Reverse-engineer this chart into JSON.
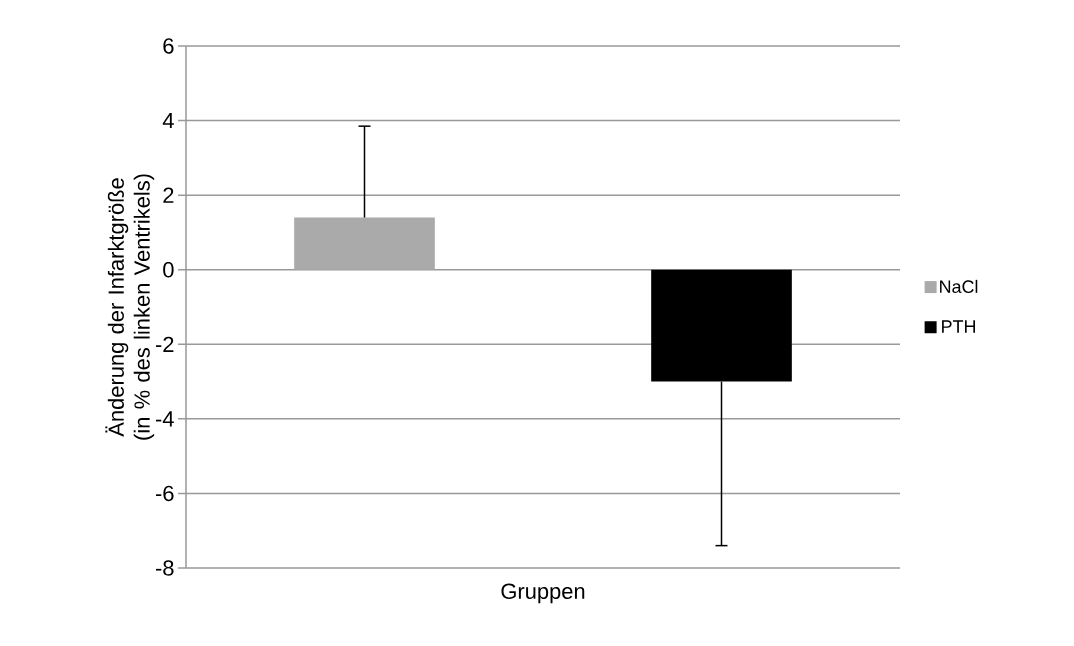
{
  "chart_data": {
    "type": "bar",
    "ylabel": "Änderung der Infarktgröße (in % des linken Ventrikels)",
    "categories": [
      "Gruppen"
    ],
    "series": [
      {
        "name": "NaCl",
        "color": "#aaaaaa",
        "values": [
          1.4
        ],
        "errors": [
          [
            1.4,
            3.85
          ]
        ]
      },
      {
        "name": "PTH",
        "color": "#000000",
        "values": [
          -3.0
        ],
        "errors": [
          [
            -7.4,
            -3.0
          ]
        ]
      }
    ],
    "ylim": [
      -8,
      6
    ],
    "yticks": [
      -8,
      -6,
      -4,
      -2,
      0,
      2,
      4,
      6
    ],
    "grid": "y",
    "legend": "right"
  }
}
